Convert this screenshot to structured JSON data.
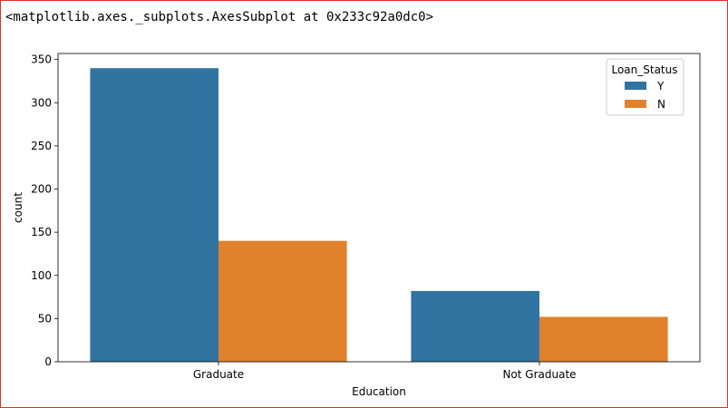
{
  "output_repr": "<matplotlib.axes._subplots.AxesSubplot at 0x233c92a0dc0>",
  "chart_data": {
    "type": "bar",
    "categories": [
      "Graduate",
      "Not Graduate"
    ],
    "series": [
      {
        "name": "Y",
        "values": [
          340,
          82
        ],
        "color": "#3274a1"
      },
      {
        "name": "N",
        "values": [
          140,
          52
        ],
        "color": "#e1812c"
      }
    ],
    "xlabel": "Education",
    "ylabel": "count",
    "ylim": [
      0,
      357
    ],
    "yticks": [
      0,
      50,
      100,
      150,
      200,
      250,
      300,
      350
    ],
    "legend": {
      "title": "Loan_Status",
      "position": "top-right"
    },
    "grid": false
  }
}
